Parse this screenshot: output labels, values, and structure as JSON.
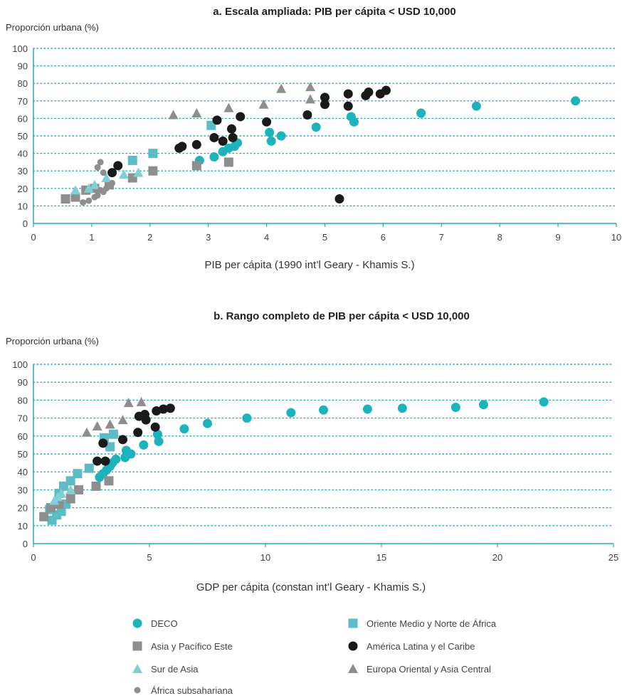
{
  "colors": {
    "DECO": "#1db3bd",
    "MENA": "#5bbcc4",
    "EAP": "#8e8e8e",
    "LAC": "#1a1a1a",
    "SAS": "#7fd0d6",
    "ECA": "#8e8e8e",
    "SSA": "#8e8e8e",
    "grid": "#2aa9b6"
  },
  "legend": [
    {
      "key": "DECO",
      "label": "DECO",
      "shape": "circle"
    },
    {
      "key": "MENA",
      "label": "Oriente Medio y Norte de África",
      "shape": "square"
    },
    {
      "key": "EAP",
      "label": "Asia y Pacífico Este",
      "shape": "square"
    },
    {
      "key": "LAC",
      "label": "América Latina y el Caribe",
      "shape": "circle"
    },
    {
      "key": "SAS",
      "label": "Sur de Asia",
      "shape": "triangle"
    },
    {
      "key": "ECA",
      "label": "Europa Oriental y Asia Central",
      "shape": "triangle"
    },
    {
      "key": "SSA",
      "label": "África  subsahariana",
      "shape": "smallcircle"
    }
  ],
  "chart_data": [
    {
      "type": "scatter",
      "title": "a. Escala ampliada: PIB per cápita < USD 10,000",
      "ylabel": "Proporción urbana (%)",
      "xlabel": "PIB per cápita (1990 int’l Geary - Khamis S.)",
      "xlim": [
        0,
        10
      ],
      "ylim": [
        0,
        100
      ],
      "xticks": [
        0,
        1,
        2,
        3,
        4,
        5,
        6,
        7,
        8,
        9,
        10
      ],
      "yticks": [
        0,
        10,
        20,
        30,
        40,
        50,
        60,
        70,
        80,
        90,
        100
      ],
      "grid": "horizontal dotted",
      "series": [
        {
          "key": "DECO",
          "points": [
            [
              2.85,
              36
            ],
            [
              3.1,
              38
            ],
            [
              3.25,
              41
            ],
            [
              3.35,
              43
            ],
            [
              3.45,
              44
            ],
            [
              3.5,
              46
            ],
            [
              4.05,
              52
            ],
            [
              4.08,
              47
            ],
            [
              4.25,
              50
            ],
            [
              4.85,
              55
            ],
            [
              5.45,
              61
            ],
            [
              5.5,
              58
            ],
            [
              6.65,
              63
            ],
            [
              7.6,
              67
            ],
            [
              9.3,
              70
            ]
          ]
        },
        {
          "key": "MENA",
          "points": [
            [
              3.05,
              56
            ],
            [
              1.7,
              36
            ],
            [
              2.05,
              40
            ]
          ]
        },
        {
          "key": "EAP",
          "points": [
            [
              0.55,
              14
            ],
            [
              0.72,
              15
            ],
            [
              0.9,
              19
            ],
            [
              1.05,
              20
            ],
            [
              1.3,
              22
            ],
            [
              1.7,
              26
            ],
            [
              2.05,
              30
            ],
            [
              2.8,
              33
            ],
            [
              3.35,
              35
            ]
          ]
        },
        {
          "key": "LAC",
          "points": [
            [
              2.5,
              43
            ],
            [
              2.55,
              44
            ],
            [
              2.8,
              45
            ],
            [
              3.1,
              49
            ],
            [
              3.15,
              59
            ],
            [
              3.25,
              47
            ],
            [
              3.4,
              54
            ],
            [
              3.42,
              49
            ],
            [
              3.55,
              61
            ],
            [
              4.0,
              58
            ],
            [
              4.7,
              62
            ],
            [
              5.0,
              72
            ],
            [
              5.0,
              68
            ],
            [
              5.4,
              74
            ],
            [
              5.4,
              67
            ],
            [
              5.7,
              73
            ],
            [
              5.75,
              75
            ],
            [
              5.95,
              74
            ],
            [
              6.05,
              76
            ],
            [
              5.25,
              14
            ],
            [
              1.35,
              29
            ],
            [
              1.45,
              33
            ]
          ]
        },
        {
          "key": "SAS",
          "points": [
            [
              0.72,
              19
            ],
            [
              0.95,
              20
            ],
            [
              1.05,
              22
            ],
            [
              1.25,
              26
            ],
            [
              1.55,
              28
            ],
            [
              1.8,
              29
            ]
          ]
        },
        {
          "key": "ECA",
          "points": [
            [
              2.4,
              62
            ],
            [
              2.8,
              63
            ],
            [
              3.35,
              66
            ],
            [
              3.95,
              68
            ],
            [
              4.25,
              77
            ],
            [
              4.75,
              78
            ],
            [
              4.75,
              71
            ]
          ]
        },
        {
          "key": "SSA",
          "points": [
            [
              0.85,
              12
            ],
            [
              0.95,
              13
            ],
            [
              1.05,
              15
            ],
            [
              1.1,
              16
            ],
            [
              1.15,
              19
            ],
            [
              1.2,
              18
            ],
            [
              1.1,
              32
            ],
            [
              1.15,
              35
            ],
            [
              1.2,
              29
            ],
            [
              1.25,
              20
            ],
            [
              1.35,
              23
            ]
          ]
        }
      ]
    },
    {
      "type": "scatter",
      "title": "b. Rango completo de PIB per cápita < USD 10,000",
      "ylabel": "Proporción urbana (%)",
      "xlabel": "GDP per cápita (constan int’l Geary - Khamis S.)",
      "xlim": [
        0,
        25
      ],
      "ylim": [
        0,
        100
      ],
      "xticks": [
        0,
        5,
        10,
        15,
        20,
        25
      ],
      "yticks": [
        0,
        10,
        20,
        30,
        40,
        50,
        60,
        70,
        80,
        90,
        100
      ],
      "grid": "horizontal dotted",
      "series": [
        {
          "key": "DECO",
          "points": [
            [
              2.85,
              37
            ],
            [
              3.0,
              39
            ],
            [
              3.15,
              41
            ],
            [
              3.3,
              43
            ],
            [
              3.4,
              45
            ],
            [
              3.55,
              47
            ],
            [
              3.95,
              48
            ],
            [
              4.0,
              52
            ],
            [
              4.2,
              50
            ],
            [
              4.75,
              55
            ],
            [
              5.4,
              57
            ],
            [
              5.35,
              61
            ],
            [
              6.5,
              64
            ],
            [
              7.5,
              67
            ],
            [
              9.2,
              70
            ],
            [
              11.1,
              73
            ],
            [
              12.5,
              74.5
            ],
            [
              14.4,
              75
            ],
            [
              15.9,
              75.5
            ],
            [
              18.2,
              76
            ],
            [
              19.4,
              77.5
            ],
            [
              22.0,
              79
            ]
          ]
        },
        {
          "key": "MENA",
          "points": [
            [
              0.8,
              13
            ],
            [
              1.0,
              16
            ],
            [
              1.2,
              18
            ],
            [
              1.4,
              22
            ],
            [
              0.7,
              19
            ],
            [
              1.1,
              28
            ],
            [
              1.3,
              32
            ],
            [
              1.6,
              35
            ],
            [
              1.9,
              39
            ],
            [
              2.4,
              42
            ],
            [
              3.05,
              59
            ],
            [
              3.3,
              54
            ],
            [
              3.45,
              61
            ]
          ]
        },
        {
          "key": "EAP",
          "points": [
            [
              0.45,
              15
            ],
            [
              0.75,
              20
            ],
            [
              1.1,
              22
            ],
            [
              1.6,
              25
            ],
            [
              1.95,
              30
            ],
            [
              2.7,
              32
            ],
            [
              3.25,
              35
            ]
          ]
        },
        {
          "key": "LAC",
          "points": [
            [
              2.75,
              46
            ],
            [
              3.1,
              46
            ],
            [
              3.0,
              56
            ],
            [
              3.85,
              58
            ],
            [
              4.5,
              62
            ],
            [
              4.55,
              71
            ],
            [
              4.8,
              72
            ],
            [
              4.85,
              69
            ],
            [
              5.25,
              65
            ],
            [
              5.3,
              74
            ],
            [
              5.6,
              75
            ],
            [
              5.9,
              75.5
            ]
          ]
        },
        {
          "key": "SAS",
          "points": [
            [
              0.9,
              24
            ],
            [
              1.05,
              26
            ],
            [
              1.2,
              28
            ],
            [
              1.6,
              30
            ]
          ]
        },
        {
          "key": "ECA",
          "points": [
            [
              2.3,
              62
            ],
            [
              2.75,
              65.5
            ],
            [
              3.3,
              66.5
            ],
            [
              3.85,
              69
            ],
            [
              4.1,
              78.5
            ],
            [
              4.65,
              79
            ]
          ]
        },
        {
          "key": "SSA",
          "points": []
        }
      ]
    }
  ]
}
